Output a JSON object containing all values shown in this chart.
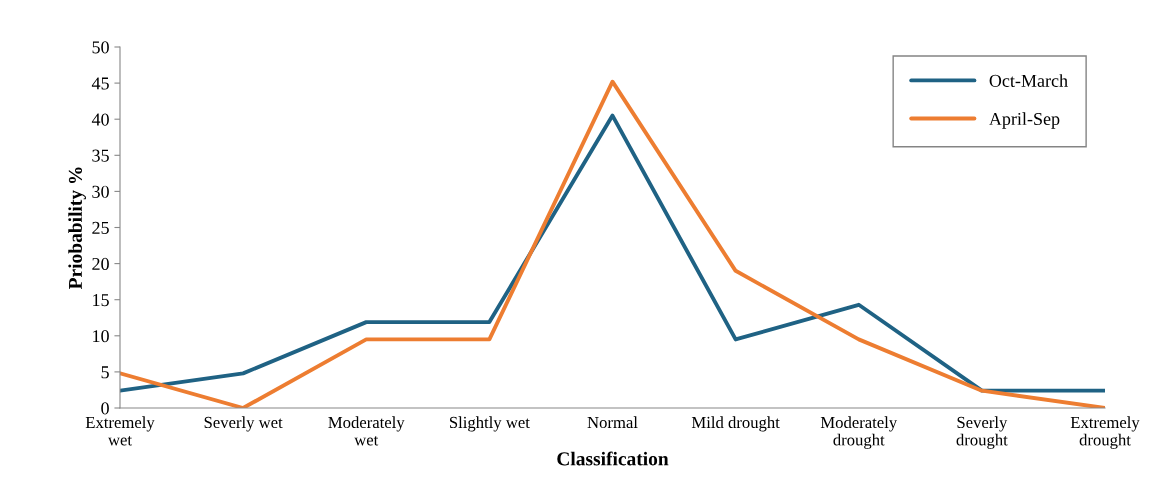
{
  "chart_data": {
    "type": "line",
    "xlabel": "Classification",
    "ylabel": "Priobability %",
    "categories": [
      "Extremely\nwet",
      "Severly wet",
      "Moderately\nwet",
      "Slightly wet",
      "Normal",
      "Mild drought",
      "Moderately\ndrought",
      "Severly\ndrought",
      "Extremely\ndrought"
    ],
    "series": [
      {
        "name": "Oct-March",
        "color": "#1f6284",
        "values": [
          2.4,
          4.8,
          11.9,
          11.9,
          40.5,
          9.5,
          14.3,
          2.4,
          2.4
        ]
      },
      {
        "name": "April-Sep",
        "color": "#ed7d31",
        "values": [
          4.8,
          0,
          9.5,
          9.5,
          45.2,
          19.0,
          9.5,
          2.4,
          0
        ]
      }
    ],
    "ylim": [
      0,
      50
    ],
    "yticks": [
      0,
      5,
      10,
      15,
      20,
      25,
      30,
      35,
      40,
      45,
      50
    ],
    "grid": false,
    "legend": "top right",
    "marker": "none",
    "line_style": "solid"
  }
}
